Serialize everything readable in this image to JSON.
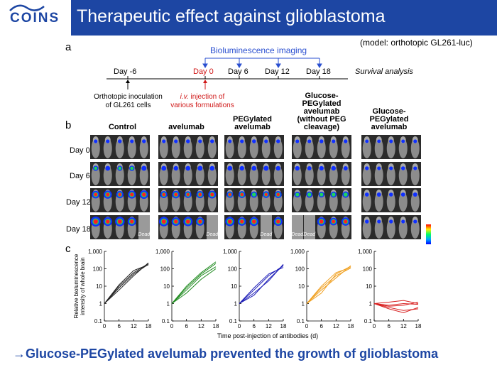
{
  "header": {
    "logo_text": "COINS",
    "title": "Therapeutic effect against glioblastoma"
  },
  "model_note": "(model:  orthotopic GL261-luc)",
  "panels": {
    "a": "a",
    "b": "b",
    "c": "c"
  },
  "timeline": {
    "imaging_label": "Bioluminescence imaging",
    "days": [
      "Day -6",
      "Day 0",
      "Day 6",
      "Day 12",
      "Day 18"
    ],
    "survival": "Survival analysis",
    "note_inoculation": "Orthotopic inoculation\nof GL261 cells",
    "note_injection_italic": "i.v.",
    "note_injection_rest": " injection of\nvarious formulations"
  },
  "groups": [
    "Control",
    "avelumab",
    "PEGylated\navelumab",
    "Glucose-\nPEGylated\navelumab\n(without PEG\ncleavage)",
    "Glucose-\nPEGylated\navelumab"
  ],
  "image_rows": [
    "Day 0",
    "Day 6",
    "Day 12",
    "Day 18"
  ],
  "dead_label": "Dead",
  "axes": {
    "ylabel": "Relative bioluminescence\nintensity of whole brain",
    "xlabel": "Time post-injection of antibodies (d)",
    "yticks": [
      "1,000",
      "100",
      "10",
      "1",
      "0.1"
    ],
    "xticks": [
      "0",
      "6",
      "12",
      "18"
    ]
  },
  "chart_data": [
    {
      "type": "line",
      "color": "#222222",
      "x": [
        0,
        6,
        12,
        18
      ],
      "ylim": [
        0.1,
        1000
      ],
      "yscale": "log",
      "series": [
        {
          "values": [
            1,
            10,
            60,
            200
          ]
        },
        {
          "values": [
            1,
            8,
            50,
            180
          ]
        },
        {
          "values": [
            1,
            12,
            80,
            170
          ]
        },
        {
          "values": [
            1,
            6,
            40,
            220
          ]
        }
      ]
    },
    {
      "type": "line",
      "color": "#1e8a1e",
      "x": [
        0,
        6,
        12,
        18
      ],
      "ylim": [
        0.1,
        1000
      ],
      "yscale": "log",
      "series": [
        {
          "values": [
            1,
            8,
            50,
            200
          ]
        },
        {
          "values": [
            1,
            6,
            40,
            130
          ]
        },
        {
          "values": [
            1,
            10,
            60,
            250
          ]
        },
        {
          "values": [
            1,
            4,
            25,
            100
          ]
        }
      ]
    },
    {
      "type": "line",
      "color": "#2020b8",
      "x": [
        0,
        6,
        12,
        18
      ],
      "ylim": [
        0.1,
        1000
      ],
      "yscale": "log",
      "series": [
        {
          "values": [
            1,
            6,
            40,
            150
          ]
        },
        {
          "values": [
            1,
            4,
            20,
            180
          ]
        },
        {
          "values": [
            1,
            8,
            50,
            120
          ]
        },
        {
          "values": [
            1,
            3,
            25,
            160
          ]
        }
      ]
    },
    {
      "type": "line",
      "color": "#f0a020",
      "x": [
        0,
        6,
        12,
        18
      ],
      "ylim": [
        0.1,
        1000
      ],
      "yscale": "log",
      "series": [
        {
          "values": [
            1,
            6,
            30,
            150
          ]
        },
        {
          "values": [
            1,
            10,
            60,
            120
          ]
        },
        {
          "values": [
            1,
            4,
            50,
            140
          ]
        },
        {
          "values": [
            1,
            8,
            40,
            110
          ]
        }
      ]
    },
    {
      "type": "line",
      "color": "#d82020",
      "x": [
        0,
        6,
        12,
        18
      ],
      "ylim": [
        0.1,
        1000
      ],
      "yscale": "log",
      "series": [
        {
          "values": [
            1,
            0.8,
            1,
            0.9
          ]
        },
        {
          "values": [
            1,
            0.5,
            0.3,
            0.6
          ]
        },
        {
          "values": [
            1,
            0.6,
            0.4,
            0.5
          ]
        },
        {
          "values": [
            1,
            1.2,
            1.5,
            1
          ]
        },
        {
          "values": [
            1,
            0.7,
            0.8,
            1.2
          ]
        }
      ]
    }
  ],
  "conclusion": "→Glucose-PEGylated avelumab prevented the growth of glioblastoma"
}
